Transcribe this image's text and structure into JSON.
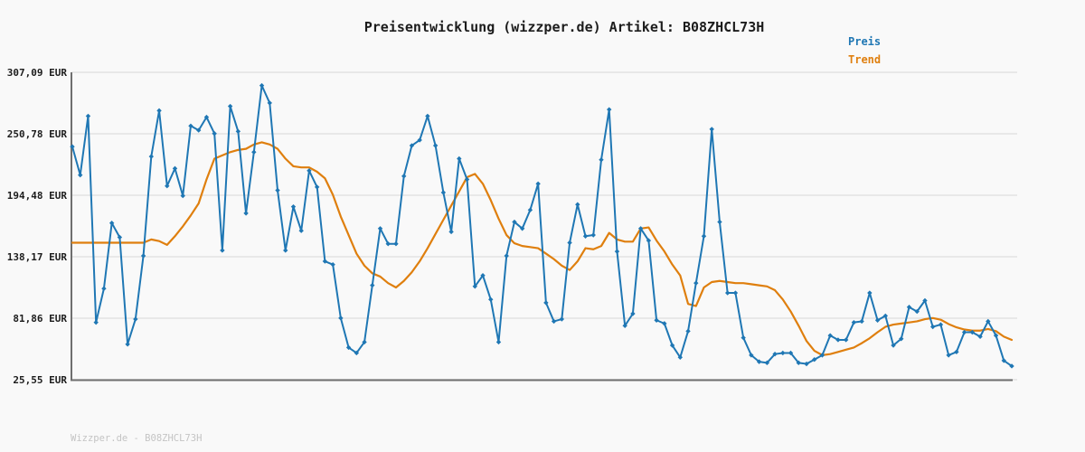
{
  "page": {
    "title": "Preisentwicklung (wizzper.de) Artikel: B08ZHCL73H",
    "footer": "Wizzper.de - B08ZHCL73H"
  },
  "legend": {
    "price_label": "Preis",
    "trend_label": "Trend"
  },
  "colors": {
    "price": "#1f77b4",
    "trend": "#df7f0e",
    "grid": "#e8e8e8",
    "axis": "#6f6f6f",
    "background": "#f9f9f9",
    "title_text": "#1c1c1c",
    "tick_text": "#1c1c1c",
    "footer_text": "#c4c4c4"
  },
  "chart_data": {
    "type": "line",
    "title": "Preisentwicklung (wizzper.de) Artikel: B08ZHCL73H",
    "xlabel": "",
    "ylabel": "",
    "grid": true,
    "legend_position": "top-right",
    "x_axis": {
      "tick_labels_visible": false,
      "num_points": 120
    },
    "y_axis": {
      "unit": "EUR",
      "range": [
        25.55,
        307.09
      ],
      "ticks": [
        307.09,
        250.78,
        194.48,
        138.17,
        81.86,
        25.55
      ],
      "tick_labels": [
        "307,09 EUR",
        "250,78 EUR",
        "194,48 EUR",
        "138,17 EUR",
        "81,86 EUR",
        "25,55 EUR"
      ]
    },
    "series": [
      {
        "name": "Preis",
        "color": "#1f77b4",
        "marker": "diamond",
        "values": [
          239,
          213,
          267,
          78,
          109,
          169,
          156,
          58,
          81,
          139,
          230,
          272,
          203,
          219,
          194,
          258,
          254,
          266,
          251,
          144,
          276,
          253,
          178,
          234,
          295,
          279,
          199,
          144,
          184,
          162,
          217,
          202,
          134,
          131,
          82,
          55,
          50,
          60,
          112,
          164,
          150,
          150,
          212,
          240,
          245,
          267,
          240,
          197,
          161,
          228,
          209,
          111,
          121,
          99,
          60,
          139,
          170,
          164,
          181,
          205,
          96,
          79,
          81,
          151,
          186,
          157,
          158,
          227,
          273,
          143,
          75,
          86,
          164,
          153,
          80,
          77,
          57,
          46,
          70,
          114,
          157,
          255,
          170,
          105,
          105,
          64,
          48,
          42,
          41,
          49,
          50,
          50,
          41,
          40,
          44,
          48,
          66,
          62,
          62,
          78,
          79,
          105,
          80,
          84,
          57,
          63,
          92,
          88,
          98,
          74,
          76,
          48,
          51,
          69,
          69,
          65,
          79,
          66,
          43,
          38
        ]
      },
      {
        "name": "Trend",
        "color": "#df7f0e",
        "marker": "none",
        "values": [
          151,
          151,
          151,
          151,
          151,
          151,
          151,
          151,
          151,
          151,
          154,
          152.5,
          149,
          157,
          166,
          176,
          187,
          209,
          228,
          231,
          234,
          236,
          237,
          241,
          243,
          241,
          237,
          228,
          221,
          220,
          220,
          216,
          210,
          195,
          175,
          158,
          141,
          130,
          123,
          120,
          114,
          110,
          116,
          124,
          134,
          146,
          159,
          172,
          185,
          198,
          211,
          214,
          205,
          190,
          173,
          158,
          150.5,
          148,
          147,
          146,
          141,
          136,
          130,
          126,
          134,
          146,
          145,
          148,
          160,
          154,
          152,
          152,
          164,
          165,
          153,
          143,
          131,
          121,
          95,
          93,
          110,
          115,
          116,
          115,
          114,
          114,
          113,
          112,
          111,
          107.5,
          99,
          88,
          75,
          61,
          52,
          48,
          49,
          51,
          53,
          55,
          59,
          63.5,
          69,
          74,
          76,
          77,
          78,
          79,
          81,
          82,
          80.5,
          76.5,
          73.5,
          71.5,
          70.5,
          70.5,
          72,
          70,
          65,
          62
        ]
      }
    ]
  }
}
